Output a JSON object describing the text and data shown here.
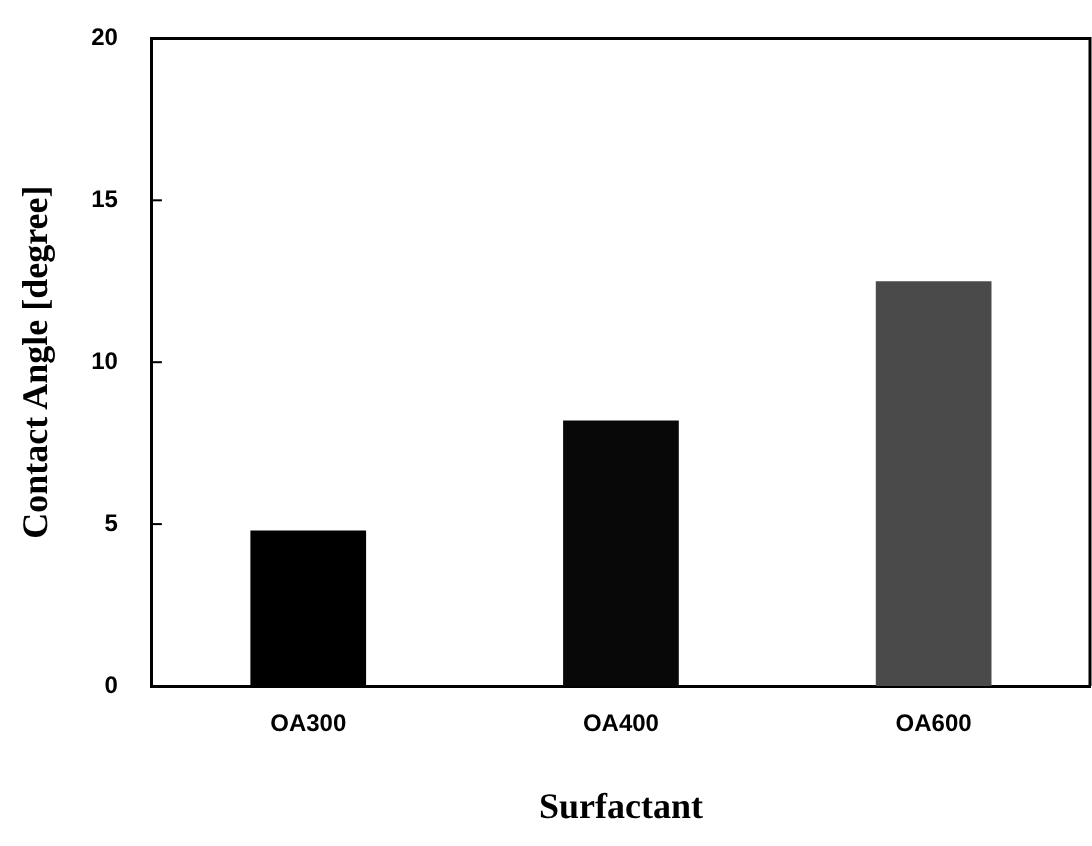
{
  "chart_data": {
    "type": "bar",
    "xlabel": "Surfactant",
    "ylabel": "Contact Angle [degree]",
    "categories": [
      "OA300",
      "OA400",
      "OA600"
    ],
    "values": [
      4.8,
      8.2,
      12.5
    ],
    "colors": [
      "#000000",
      "#080808",
      "#4a4a4a"
    ],
    "ylim": [
      0,
      20
    ],
    "yticks": [
      0,
      5,
      10,
      15,
      20
    ],
    "grid": false,
    "legend": false
  }
}
